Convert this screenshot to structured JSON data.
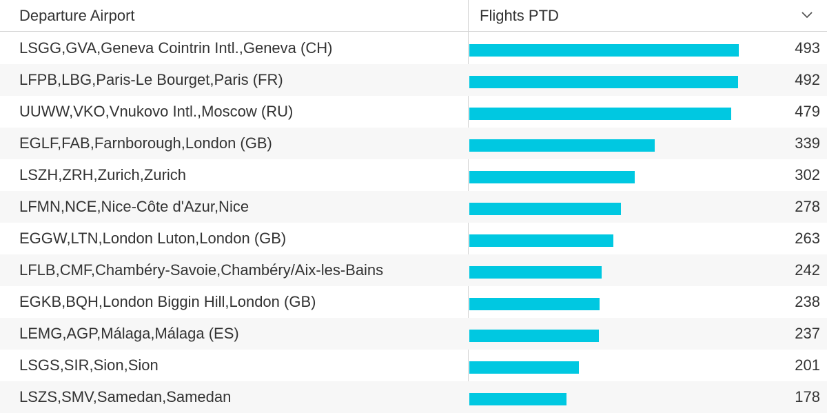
{
  "table": {
    "columns": [
      "Departure Airport",
      "Flights PTD"
    ],
    "sort_icon": "chevron-down-icon",
    "bar_color": "#00c8e1",
    "max_value": 493,
    "rows": [
      {
        "airport": "LSGG,GVA,Geneva Cointrin Intl.,Geneva (CH)",
        "flights": 493
      },
      {
        "airport": "LFPB,LBG,Paris-Le Bourget,Paris (FR)",
        "flights": 492
      },
      {
        "airport": "UUWW,VKO,Vnukovo Intl.,Moscow (RU)",
        "flights": 479
      },
      {
        "airport": "EGLF,FAB,Farnborough,London (GB)",
        "flights": 339
      },
      {
        "airport": "LSZH,ZRH,Zurich,Zurich",
        "flights": 302
      },
      {
        "airport": "LFMN,NCE,Nice-Côte d'Azur,Nice",
        "flights": 278
      },
      {
        "airport": "EGGW,LTN,London Luton,London (GB)",
        "flights": 263
      },
      {
        "airport": "LFLB,CMF,Chambéry-Savoie,Chambéry/Aix-les-Bains",
        "flights": 242
      },
      {
        "airport": "EGKB,BQH,London Biggin Hill,London (GB)",
        "flights": 238
      },
      {
        "airport": "LEMG,AGP,Málaga,Málaga (ES)",
        "flights": 237
      },
      {
        "airport": "LSGS,SIR,Sion,Sion",
        "flights": 201
      },
      {
        "airport": "LSZS,SMV,Samedan,Samedan",
        "flights": 178
      }
    ]
  }
}
